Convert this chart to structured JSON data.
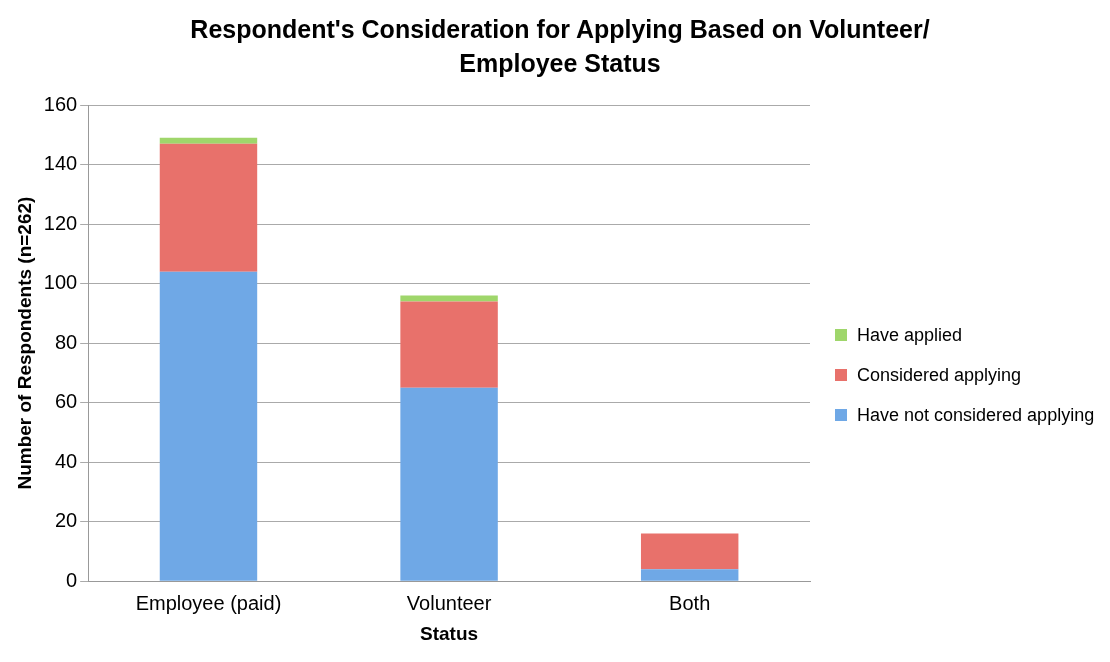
{
  "chart_data": {
    "type": "bar",
    "title": "Respondent's Consideration for Applying Based on Volunteer/ Employee Status",
    "xlabel": "Status",
    "ylabel": "Number of Respondents (n=262)",
    "categories": [
      "Employee (paid)",
      "Volunteer",
      "Both"
    ],
    "stacked": true,
    "ylim": [
      0,
      160
    ],
    "yticks": [
      0,
      20,
      40,
      60,
      80,
      100,
      120,
      140,
      160
    ],
    "grid": "y",
    "legend": "right",
    "series": [
      {
        "name": "Have not considered applying",
        "color": "#6fa8e6",
        "values": [
          104,
          65,
          4
        ]
      },
      {
        "name": "Considered applying",
        "color": "#e8716b",
        "values": [
          43,
          29,
          12
        ]
      },
      {
        "name": "Have applied",
        "color": "#9fd66b",
        "values": [
          2,
          2,
          0
        ]
      }
    ]
  }
}
